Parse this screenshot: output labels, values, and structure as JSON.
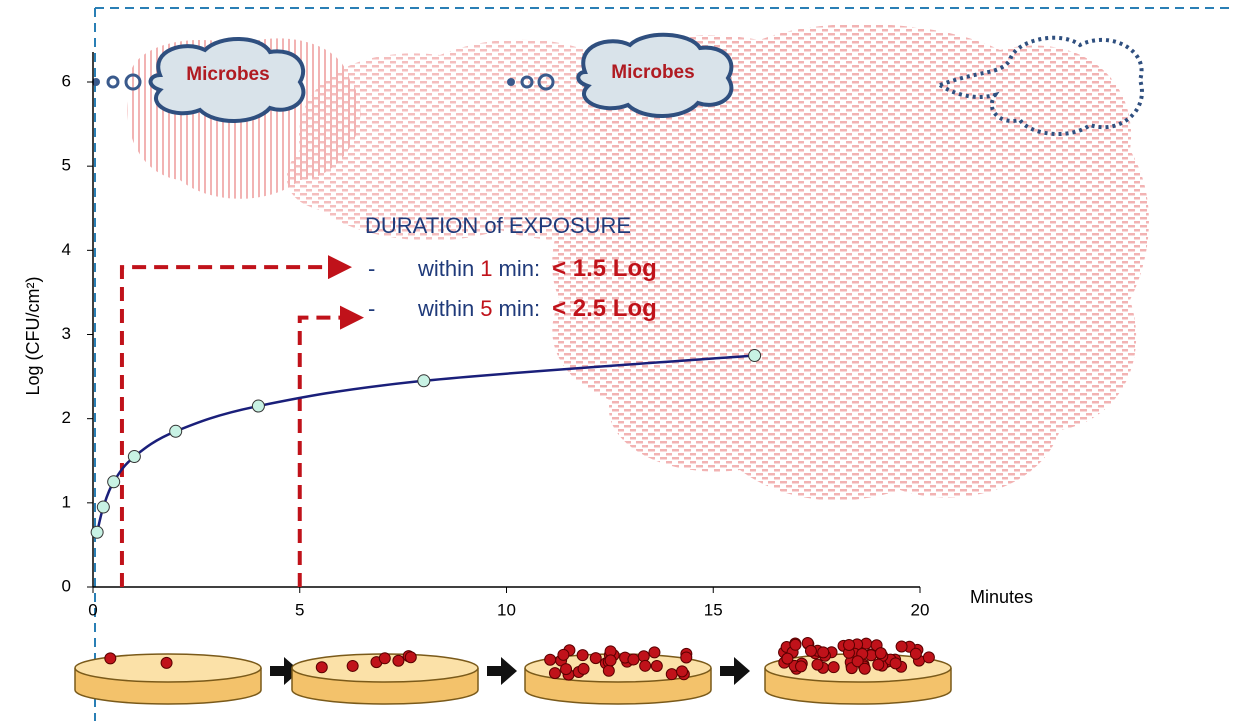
{
  "chart_data": {
    "type": "line",
    "y_label": "Log (CFU/cm²)",
    "x_label": "Minutes",
    "clouds": [
      "Microbes",
      "Microbes"
    ],
    "annotation": {
      "title": "DURATION of EXPOSURE",
      "items": [
        {
          "dash": "-",
          "prefix": "within",
          "time": "1",
          "unit": "min:",
          "result": "< 1.5 Log"
        },
        {
          "dash": "-",
          "prefix": "within",
          "time": "5",
          "unit": "min:",
          "result": "< 2.5 Log"
        }
      ]
    },
    "reference_lines": [
      {
        "x": 0.7,
        "top": 3.8
      },
      {
        "x": 5,
        "top": 3.2
      }
    ],
    "x": [
      0.1,
      0.25,
      0.5,
      1,
      2,
      4,
      8,
      16
    ],
    "series": [
      {
        "name": "Log (CFU/cm²)",
        "color": "#1a1f7a",
        "values": [
          0.65,
          0.95,
          1.25,
          1.55,
          1.85,
          2.15,
          2.45,
          2.75
        ]
      }
    ],
    "xlim": [
      0,
      20
    ],
    "xticks": [
      0,
      5,
      10,
      15,
      20
    ],
    "ylim": [
      0,
      6
    ],
    "yticks": [
      0,
      1,
      2,
      3,
      4,
      5,
      6
    ],
    "marker_color": "#c8f2e4",
    "reference_color": "#c0121a"
  }
}
